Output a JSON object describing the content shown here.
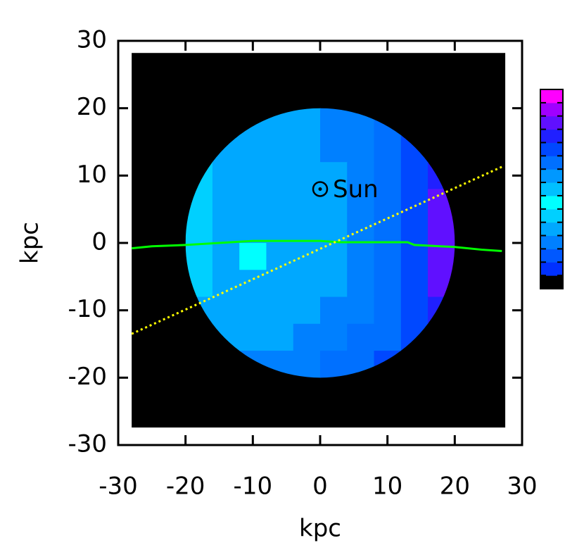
{
  "chart_data": {
    "type": "heatmap",
    "xlabel": "kpc",
    "ylabel": "kpc",
    "xlim": [
      -30,
      30
    ],
    "ylim": [
      -30,
      30
    ],
    "xticks": [
      -30,
      -20,
      -10,
      0,
      10,
      20,
      30
    ],
    "yticks": [
      -30,
      -20,
      -10,
      0,
      10,
      20,
      30
    ],
    "background": {
      "color": "#000000",
      "x": [
        -28,
        27.5
      ],
      "y": [
        -27.4,
        28.2
      ]
    },
    "colorbar": [
      "#000000",
      "#0030ff",
      "#0058ff",
      "#0080ff",
      "#00a8ff",
      "#00d0ff",
      "#00ffff",
      "#00c0ff",
      "#0098ff",
      "#0070ff",
      "#0048ff",
      "#2020ff",
      "#6010ff",
      "#a000ff",
      "#ff00ff"
    ],
    "heatmap": {
      "radius": 20,
      "x": [
        -18,
        -14,
        -10,
        -6,
        -2,
        2,
        6,
        10,
        14,
        18
      ],
      "y": [
        18,
        14,
        10,
        6,
        2,
        -2,
        -6,
        -10,
        -14,
        -18
      ],
      "z": [
        [
          5,
          5,
          4,
          4,
          4,
          3,
          3,
          9,
          10,
          10
        ],
        [
          5,
          4,
          4,
          4,
          4,
          3,
          3,
          9,
          10,
          11
        ],
        [
          5,
          4,
          4,
          4,
          4,
          4,
          3,
          9,
          10,
          11
        ],
        [
          5,
          4,
          4,
          4,
          4,
          4,
          3,
          9,
          10,
          12
        ],
        [
          5,
          4,
          4,
          4,
          4,
          4,
          3,
          9,
          10,
          12
        ],
        [
          5,
          4,
          6,
          4,
          4,
          4,
          3,
          9,
          10,
          12
        ],
        [
          5,
          4,
          4,
          4,
          4,
          4,
          3,
          9,
          10,
          12
        ],
        [
          4,
          4,
          4,
          4,
          4,
          3,
          3,
          9,
          10,
          11
        ],
        [
          4,
          4,
          4,
          4,
          3,
          3,
          9,
          9,
          10,
          10
        ],
        [
          4,
          4,
          3,
          3,
          3,
          9,
          9,
          10,
          10,
          10
        ]
      ]
    },
    "series": [
      {
        "color": "#00ff00",
        "x": [
          -28,
          -25,
          -20,
          -10,
          0,
          3,
          13,
          14,
          20,
          24,
          27
        ],
        "values": [
          -0.8,
          -0.5,
          -0.3,
          0.3,
          0.3,
          0.1,
          0.1,
          -0.3,
          -0.6,
          -1,
          -1.2
        ]
      },
      {
        "color": "#ffff00",
        "x": [
          -28,
          27
        ],
        "values": [
          -13.5,
          11.3
        ],
        "dotted": true
      }
    ],
    "annotations": [
      {
        "text": "Sun",
        "x": 0,
        "y": 8
      }
    ]
  }
}
